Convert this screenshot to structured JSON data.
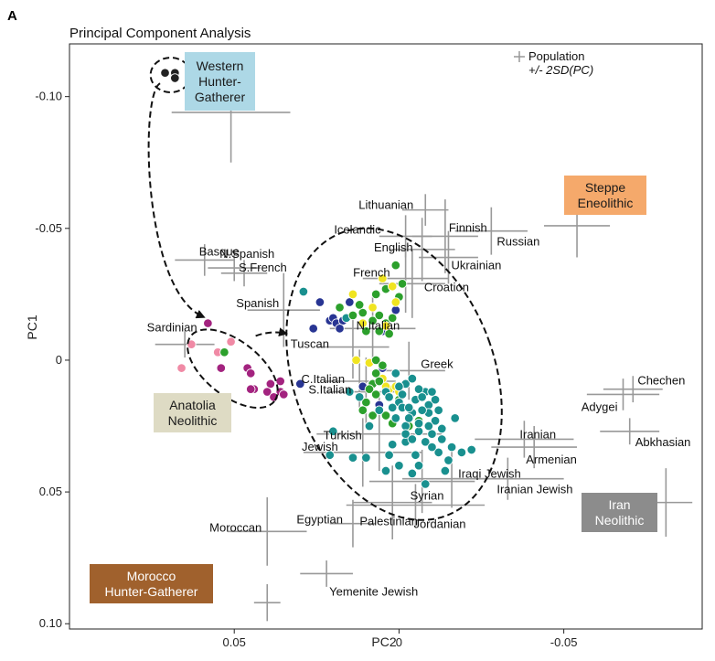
{
  "panel_letter": "A",
  "chart_data": {
    "type": "scatter",
    "title": "Principal Component Analysis",
    "xlabel": "PC2",
    "ylabel": "PC1",
    "xlim": [
      0.1,
      -0.092
    ],
    "ylim": [
      -0.12,
      0.102
    ],
    "x_reversed": true,
    "y_reversed": true,
    "xticks": [
      {
        "v": 0.05,
        "label": "0.05"
      },
      {
        "v": 0.0,
        "label": "0"
      },
      {
        "v": -0.05,
        "label": "-0.05"
      }
    ],
    "yticks": [
      {
        "v": -0.1,
        "label": "-0.10"
      },
      {
        "v": -0.05,
        "label": "-0.05"
      },
      {
        "v": 0.0,
        "label": "0"
      },
      {
        "v": 0.05,
        "label": "0.05"
      },
      {
        "v": 0.1,
        "label": "0.10"
      }
    ],
    "grid": false,
    "legend": {
      "position": "top-right",
      "line1": "Population",
      "line2": "+/- 2SD(PC)"
    },
    "colors": {
      "whg": "#222222",
      "anatolia": "#a3237f",
      "anatolia_light": "#f08aa5",
      "green": "#2ca02c",
      "yellow": "#f0e421",
      "teal": "#19908f",
      "navy": "#283593",
      "crosshair": "#999999"
    },
    "populations": [
      {
        "name": "Lithuanian",
        "x": -0.008,
        "y": -0.057,
        "sx": 0.007,
        "sy": 0.006
      },
      {
        "name": "Finnish",
        "x": -0.014,
        "y": -0.047,
        "sx": 0.01,
        "sy": 0.014
      },
      {
        "name": "Russian",
        "x": -0.028,
        "y": -0.049,
        "sx": 0.011,
        "sy": 0.009
      },
      {
        "name": "Icelandic",
        "x": -0.002,
        "y": -0.047,
        "sx": 0.008,
        "sy": 0.008
      },
      {
        "name": "English",
        "x": -0.007,
        "y": -0.042,
        "sx": 0.01,
        "sy": 0.012
      },
      {
        "name": "Ukrainian",
        "x": -0.015,
        "y": -0.039,
        "sx": 0.009,
        "sy": 0.01
      },
      {
        "name": "French",
        "x": -0.002,
        "y": -0.031,
        "sx": 0.013,
        "sy": 0.013
      },
      {
        "name": "Croation",
        "x": -0.004,
        "y": -0.029,
        "sx": 0.01,
        "sy": 0.013
      },
      {
        "name": "Basque",
        "x": 0.059,
        "y": -0.038,
        "sx": 0.009,
        "sy": 0.006
      },
      {
        "name": "N.Spanish",
        "x": 0.05,
        "y": -0.035,
        "sx": 0.008,
        "sy": 0.005
      },
      {
        "name": "S.French",
        "x": 0.047,
        "y": -0.033,
        "sx": 0.007,
        "sy": 0.005
      },
      {
        "name": "Spanish",
        "x": 0.035,
        "y": -0.019,
        "sx": 0.011,
        "sy": 0.014
      },
      {
        "name": "Sardinian",
        "x": 0.065,
        "y": -0.006,
        "sx": 0.009,
        "sy": 0.005
      },
      {
        "name": "N.Italian",
        "x": 0.008,
        "y": -0.012,
        "sx": 0.013,
        "sy": 0.014
      },
      {
        "name": "Tuscan",
        "x": 0.014,
        "y": -0.005,
        "sx": 0.011,
        "sy": 0.012
      },
      {
        "name": "Greek",
        "x": -0.003,
        "y": 0.004,
        "sx": 0.011,
        "sy": 0.011
      },
      {
        "name": "C.Italian",
        "x": 0.012,
        "y": 0.008,
        "sx": 0.011,
        "sy": 0.012
      },
      {
        "name": "S.Italian",
        "x": 0.01,
        "y": 0.012,
        "sx": 0.012,
        "sy": 0.013
      },
      {
        "name": "Turkish",
        "x": 0.006,
        "y": 0.028,
        "sx": 0.019,
        "sy": 0.014
      },
      {
        "name": "Jewish",
        "x": 0.011,
        "y": 0.035,
        "sx": 0.018,
        "sy": 0.013
      },
      {
        "name": "Chechen",
        "x": -0.071,
        "y": 0.011,
        "sx": 0.009,
        "sy": 0.005
      },
      {
        "name": "Adygei",
        "x": -0.068,
        "y": 0.013,
        "sx": 0.011,
        "sy": 0.006
      },
      {
        "name": "Abkhasian",
        "x": -0.07,
        "y": 0.027,
        "sx": 0.009,
        "sy": 0.005
      },
      {
        "name": "Iranian",
        "x": -0.038,
        "y": 0.03,
        "sx": 0.015,
        "sy": 0.007
      },
      {
        "name": "Armenian",
        "x": -0.041,
        "y": 0.033,
        "sx": 0.013,
        "sy": 0.008
      },
      {
        "name": "Iraqi Jewish",
        "x": -0.016,
        "y": 0.045,
        "sx": 0.015,
        "sy": 0.011
      },
      {
        "name": "Iranian Jewish",
        "x": -0.033,
        "y": 0.045,
        "sx": 0.017,
        "sy": 0.008
      },
      {
        "name": "Syrian",
        "x": -0.007,
        "y": 0.046,
        "sx": 0.016,
        "sy": 0.012
      },
      {
        "name": "Jordanian",
        "x": -0.005,
        "y": 0.055,
        "sx": 0.021,
        "sy": 0.008
      },
      {
        "name": "Palestinian",
        "x": 0.002,
        "y": 0.054,
        "sx": 0.012,
        "sy": 0.014
      },
      {
        "name": "Egyptian",
        "x": 0.014,
        "y": 0.062,
        "sx": 0.007,
        "sy": 0.009
      },
      {
        "name": "Moroccan",
        "x": 0.04,
        "y": 0.065,
        "sx": 0.012,
        "sy": 0.013
      },
      {
        "name": "Yemenite Jewish",
        "x": 0.022,
        "y": 0.081,
        "sx": 0.008,
        "sy": 0.005
      },
      {
        "name": "Western Hunter-Gatherer",
        "x": 0.051,
        "y": -0.094,
        "sx": 0.018,
        "sy": 0.019
      },
      {
        "name": "Steppe Eneolithic",
        "x": -0.054,
        "y": -0.051,
        "sx": 0.01,
        "sy": 0.012
      },
      {
        "name": "Iran Neolithic",
        "x": -0.081,
        "y": 0.054,
        "sx": 0.008,
        "sy": 0.013
      },
      {
        "name": "Morocco Hunter-Gatherer",
        "x": 0.04,
        "y": 0.092,
        "sx": 0.004,
        "sy": 0.007
      }
    ],
    "ancient_labels": [
      {
        "name": "Western Hunter-Gatherer",
        "lines": [
          "Western",
          "Hunter-",
          "Gatherer"
        ],
        "fill": "#add8e6",
        "text_color": "#1a1a1a"
      },
      {
        "name": "Steppe Eneolithic",
        "lines": [
          "Steppe",
          "Eneolithic"
        ],
        "fill": "#f5a96b",
        "text_color": "#1a1a1a"
      },
      {
        "name": "Anatolia Neolithic",
        "lines": [
          "Anatolia",
          "Neolithic"
        ],
        "fill": "#dedbc4",
        "text_color": "#1a1a1a"
      },
      {
        "name": "Iran Neolithic",
        "lines": [
          "Iran",
          "Neolithic"
        ],
        "fill": "#8c8c8c",
        "text_color": "#ffffff"
      },
      {
        "name": "Morocco Hunter-Gatherer",
        "lines": [
          "Morocco",
          "Hunter-Gatherer"
        ],
        "fill": "#a0612d",
        "text_color": "#ffffff"
      }
    ],
    "ancient_points": [
      {
        "group": "whg",
        "x": 0.071,
        "y": -0.109
      },
      {
        "group": "whg",
        "x": 0.068,
        "y": -0.109
      },
      {
        "group": "whg",
        "x": 0.068,
        "y": -0.107
      },
      {
        "group": "anatolia",
        "x": 0.058,
        "y": -0.014
      },
      {
        "group": "anatolia_light",
        "x": 0.063,
        "y": -0.006
      },
      {
        "group": "anatolia_light",
        "x": 0.066,
        "y": 0.003
      },
      {
        "group": "anatolia_light",
        "x": 0.055,
        "y": -0.003
      },
      {
        "group": "anatolia_light",
        "x": 0.051,
        "y": -0.007
      },
      {
        "group": "green",
        "x": 0.053,
        "y": -0.003
      },
      {
        "group": "anatolia",
        "x": 0.054,
        "y": 0.003
      },
      {
        "group": "anatolia",
        "x": 0.046,
        "y": 0.003
      },
      {
        "group": "anatolia",
        "x": 0.045,
        "y": 0.005
      },
      {
        "group": "anatolia",
        "x": 0.039,
        "y": 0.009
      },
      {
        "group": "anatolia",
        "x": 0.036,
        "y": 0.008
      },
      {
        "group": "anatolia",
        "x": 0.044,
        "y": 0.011
      },
      {
        "group": "anatolia",
        "x": 0.04,
        "y": 0.012
      },
      {
        "group": "anatolia",
        "x": 0.036,
        "y": 0.012
      },
      {
        "group": "anatolia",
        "x": 0.035,
        "y": 0.013
      },
      {
        "group": "anatolia",
        "x": 0.045,
        "y": 0.011
      },
      {
        "group": "anatolia",
        "x": 0.038,
        "y": 0.014
      },
      {
        "group": "navy",
        "x": 0.03,
        "y": 0.009
      },
      {
        "group": "teal",
        "x": 0.029,
        "y": -0.026
      },
      {
        "group": "navy",
        "x": 0.024,
        "y": -0.022
      },
      {
        "group": "navy",
        "x": 0.021,
        "y": -0.015
      },
      {
        "group": "navy",
        "x": 0.02,
        "y": -0.016
      },
      {
        "group": "navy",
        "x": 0.019,
        "y": -0.014
      },
      {
        "group": "navy",
        "x": 0.017,
        "y": -0.015
      },
      {
        "group": "teal",
        "x": 0.016,
        "y": -0.016
      },
      {
        "group": "navy",
        "x": 0.026,
        "y": -0.012
      },
      {
        "group": "navy",
        "x": 0.015,
        "y": -0.022
      },
      {
        "group": "navy",
        "x": 0.018,
        "y": -0.012
      },
      {
        "group": "navy",
        "x": 0.005,
        "y": -0.011
      },
      {
        "group": "navy",
        "x": 0.001,
        "y": -0.019
      },
      {
        "group": "green",
        "x": 0.018,
        "y": -0.02
      },
      {
        "group": "green",
        "x": 0.014,
        "y": -0.017
      },
      {
        "group": "green",
        "x": 0.011,
        "y": -0.018
      },
      {
        "group": "green",
        "x": 0.008,
        "y": -0.015
      },
      {
        "group": "green",
        "x": 0.006,
        "y": -0.017
      },
      {
        "group": "green",
        "x": 0.004,
        "y": -0.014
      },
      {
        "group": "green",
        "x": 0.002,
        "y": -0.016
      },
      {
        "group": "green",
        "x": 0.01,
        "y": -0.011
      },
      {
        "group": "green",
        "x": 0.006,
        "y": -0.011
      },
      {
        "group": "green",
        "x": 0.003,
        "y": -0.01
      },
      {
        "group": "green",
        "x": 0.007,
        "y": -0.025
      },
      {
        "group": "green",
        "x": 0.001,
        "y": -0.036
      },
      {
        "group": "green",
        "x": 0.004,
        "y": -0.027
      },
      {
        "group": "green",
        "x": -0.001,
        "y": -0.029
      },
      {
        "group": "green",
        "x": 0.0,
        "y": -0.024
      },
      {
        "group": "green",
        "x": 0.012,
        "y": -0.021
      },
      {
        "group": "yellow",
        "x": 0.008,
        "y": -0.02
      },
      {
        "group": "yellow",
        "x": 0.002,
        "y": -0.028
      },
      {
        "group": "yellow",
        "x": 0.005,
        "y": -0.031
      },
      {
        "group": "yellow",
        "x": 0.004,
        "y": -0.013
      },
      {
        "group": "yellow",
        "x": 0.001,
        "y": -0.022
      },
      {
        "group": "yellow",
        "x": 0.014,
        "y": -0.025
      },
      {
        "group": "yellow",
        "x": 0.011,
        "y": -0.014
      },
      {
        "group": "yellow",
        "x": 0.013,
        "y": 0.0
      },
      {
        "group": "yellow",
        "x": 0.009,
        "y": 0.001
      },
      {
        "group": "yellow",
        "x": 0.005,
        "y": 0.007
      },
      {
        "group": "yellow",
        "x": 0.003,
        "y": 0.011
      },
      {
        "group": "yellow",
        "x": 0.001,
        "y": 0.01
      },
      {
        "group": "yellow",
        "x": 0.0,
        "y": 0.012
      },
      {
        "group": "yellow",
        "x": 0.004,
        "y": 0.01
      },
      {
        "group": "navy",
        "x": 0.005,
        "y": 0.003
      },
      {
        "group": "navy",
        "x": 0.011,
        "y": 0.01
      },
      {
        "group": "navy",
        "x": 0.006,
        "y": 0.017
      },
      {
        "group": "green",
        "x": 0.007,
        "y": 0.0
      },
      {
        "group": "green",
        "x": 0.005,
        "y": 0.002
      },
      {
        "group": "green",
        "x": 0.007,
        "y": 0.005
      },
      {
        "group": "green",
        "x": 0.008,
        "y": 0.009
      },
      {
        "group": "green",
        "x": 0.006,
        "y": 0.008
      },
      {
        "group": "green",
        "x": 0.009,
        "y": 0.011
      },
      {
        "group": "green",
        "x": 0.007,
        "y": 0.013
      },
      {
        "group": "green",
        "x": 0.01,
        "y": 0.016
      },
      {
        "group": "green",
        "x": 0.011,
        "y": 0.019
      },
      {
        "group": "green",
        "x": 0.008,
        "y": 0.021
      },
      {
        "group": "green",
        "x": 0.004,
        "y": 0.021
      },
      {
        "group": "green",
        "x": 0.002,
        "y": 0.024
      },
      {
        "group": "green",
        "x": -0.003,
        "y": 0.025
      },
      {
        "group": "green",
        "x": -0.006,
        "y": 0.023
      },
      {
        "group": "green",
        "x": 0.0,
        "y": 0.015
      },
      {
        "group": "teal",
        "x": 0.004,
        "y": 0.012
      },
      {
        "group": "teal",
        "x": 0.0,
        "y": 0.016
      },
      {
        "group": "teal",
        "x": -0.001,
        "y": 0.018
      },
      {
        "group": "teal",
        "x": -0.005,
        "y": 0.015
      },
      {
        "group": "teal",
        "x": -0.008,
        "y": 0.012
      },
      {
        "group": "teal",
        "x": -0.009,
        "y": 0.017
      },
      {
        "group": "teal",
        "x": -0.004,
        "y": 0.02
      },
      {
        "group": "teal",
        "x": -0.002,
        "y": 0.025
      },
      {
        "group": "teal",
        "x": -0.006,
        "y": 0.027
      },
      {
        "group": "teal",
        "x": -0.013,
        "y": 0.03
      },
      {
        "group": "teal",
        "x": -0.016,
        "y": 0.033
      },
      {
        "group": "teal",
        "x": -0.019,
        "y": 0.035
      },
      {
        "group": "teal",
        "x": -0.022,
        "y": 0.034
      },
      {
        "group": "teal",
        "x": -0.015,
        "y": 0.038
      },
      {
        "group": "teal",
        "x": -0.012,
        "y": 0.035
      },
      {
        "group": "teal",
        "x": -0.01,
        "y": 0.028
      },
      {
        "group": "teal",
        "x": -0.008,
        "y": 0.031
      },
      {
        "group": "teal",
        "x": -0.002,
        "y": 0.031
      },
      {
        "group": "teal",
        "x": 0.002,
        "y": 0.032
      },
      {
        "group": "teal",
        "x": 0.004,
        "y": 0.042
      },
      {
        "group": "teal",
        "x": 0.0,
        "y": 0.04
      },
      {
        "group": "teal",
        "x": -0.004,
        "y": 0.043
      },
      {
        "group": "teal",
        "x": -0.006,
        "y": 0.04
      },
      {
        "group": "teal",
        "x": -0.008,
        "y": 0.047
      },
      {
        "group": "teal",
        "x": -0.014,
        "y": 0.042
      },
      {
        "group": "teal",
        "x": 0.02,
        "y": 0.027
      },
      {
        "group": "teal",
        "x": 0.021,
        "y": 0.036
      },
      {
        "group": "teal",
        "x": 0.01,
        "y": 0.037
      },
      {
        "group": "teal",
        "x": 0.014,
        "y": 0.037
      },
      {
        "group": "teal",
        "x": 0.009,
        "y": 0.025
      },
      {
        "group": "teal",
        "x": 0.012,
        "y": 0.014
      },
      {
        "group": "teal",
        "x": 0.015,
        "y": 0.012
      },
      {
        "group": "teal",
        "x": 0.001,
        "y": 0.005
      },
      {
        "group": "teal",
        "x": -0.002,
        "y": 0.009
      },
      {
        "group": "teal",
        "x": -0.006,
        "y": 0.011
      },
      {
        "group": "teal",
        "x": -0.007,
        "y": 0.014
      },
      {
        "group": "teal",
        "x": -0.009,
        "y": 0.02
      },
      {
        "group": "teal",
        "x": -0.011,
        "y": 0.023
      },
      {
        "group": "teal",
        "x": -0.013,
        "y": 0.026
      },
      {
        "group": "teal",
        "x": -0.017,
        "y": 0.022
      },
      {
        "group": "teal",
        "x": -0.003,
        "y": 0.018
      },
      {
        "group": "teal",
        "x": 0.003,
        "y": 0.014
      },
      {
        "group": "teal",
        "x": 0.006,
        "y": 0.019
      },
      {
        "group": "teal",
        "x": 0.001,
        "y": 0.022
      },
      {
        "group": "teal",
        "x": -0.002,
        "y": 0.028
      },
      {
        "group": "teal",
        "x": -0.009,
        "y": 0.025
      },
      {
        "group": "teal",
        "x": -0.01,
        "y": 0.033
      },
      {
        "group": "teal",
        "x": -0.005,
        "y": 0.036
      },
      {
        "group": "teal",
        "x": 0.003,
        "y": 0.036
      },
      {
        "group": "teal",
        "x": -0.004,
        "y": 0.03
      },
      {
        "group": "teal",
        "x": -0.007,
        "y": 0.019
      },
      {
        "group": "teal",
        "x": -0.011,
        "y": 0.015
      },
      {
        "group": "teal",
        "x": -0.012,
        "y": 0.019
      },
      {
        "group": "teal",
        "x": -0.01,
        "y": 0.012
      },
      {
        "group": "teal",
        "x": -0.004,
        "y": 0.007
      },
      {
        "group": "teal",
        "x": -0.001,
        "y": 0.013
      },
      {
        "group": "teal",
        "x": 0.002,
        "y": 0.018
      },
      {
        "group": "teal",
        "x": 0.0,
        "y": 0.01
      },
      {
        "group": "teal",
        "x": -0.003,
        "y": 0.022
      },
      {
        "group": "teal",
        "x": -0.006,
        "y": 0.024
      }
    ]
  }
}
